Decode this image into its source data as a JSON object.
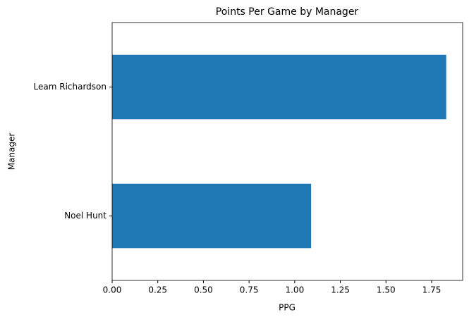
{
  "chart_data": {
    "type": "barh",
    "title": "Points Per Game by Manager",
    "xlabel": "PPG",
    "ylabel": "Manager",
    "categories": [
      "Leam Richardson",
      "Noel Hunt"
    ],
    "values": [
      1.83,
      1.09
    ],
    "color": "#1f77b4",
    "xlim": [
      0,
      1.92
    ],
    "xticks": [
      {
        "value": 0,
        "label": "0.00"
      },
      {
        "value": 0.25,
        "label": "0.25"
      },
      {
        "value": 0.5,
        "label": "0.50"
      },
      {
        "value": 0.75,
        "label": "0.75"
      },
      {
        "value": 1,
        "label": "1.00"
      },
      {
        "value": 1.25,
        "label": "1.25"
      },
      {
        "value": 1.5,
        "label": "1.50"
      },
      {
        "value": 1.75,
        "label": "1.75"
      }
    ],
    "grid": false
  }
}
